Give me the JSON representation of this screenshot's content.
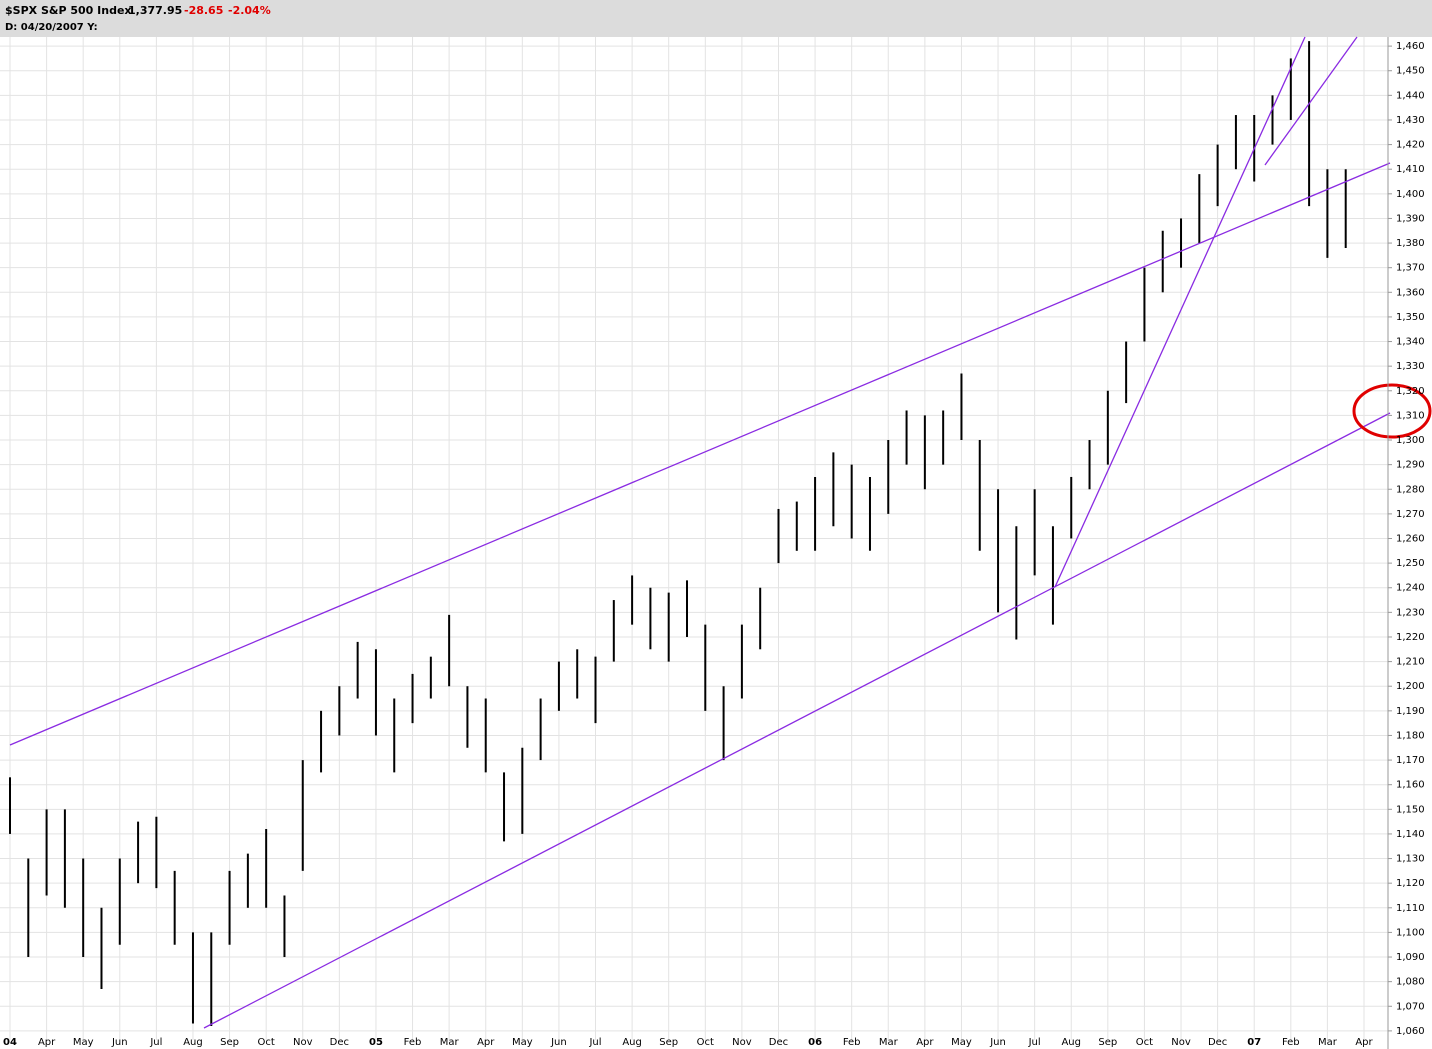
{
  "chart_data": {
    "type": "hl-bar",
    "title": "$SPX S&P 500 Index",
    "last": "1,377.95",
    "change": "-28.65",
    "change_pct": "-2.04%",
    "cursor_label": "D: 04/20/2007 Y:",
    "color": "#000000",
    "grid": true,
    "categories": [
      "04",
      null,
      "Apr",
      null,
      "May",
      null,
      "Jun",
      null,
      "Jul",
      null,
      "Aug",
      null,
      "Sep",
      null,
      "Oct",
      null,
      "Nov",
      null,
      "Dec",
      null,
      "05",
      null,
      "Feb",
      null,
      "Mar",
      null,
      "Apr",
      null,
      "May",
      null,
      "Jun",
      null,
      "Jul",
      null,
      "Aug",
      null,
      "Sep",
      null,
      "Oct",
      null,
      "Nov",
      null,
      "Dec",
      null,
      "06",
      null,
      "Feb",
      null,
      "Mar",
      null,
      "Apr",
      null,
      "May",
      null,
      "Jun",
      null,
      "Jul",
      null,
      "Aug",
      null,
      "Sep",
      null,
      "Oct",
      null,
      "Nov",
      null,
      "Dec",
      null,
      "07",
      null,
      "Feb",
      null,
      "Mar",
      null,
      "Apr"
    ],
    "high": [
      1163,
      1130,
      1150,
      1150,
      1130,
      1110,
      1130,
      1145,
      1147,
      1125,
      1100,
      1100,
      1125,
      1132,
      1142,
      1115,
      1170,
      1190,
      1200,
      1218,
      1215,
      1195,
      1205,
      1212,
      1229,
      1200,
      1195,
      1165,
      1175,
      1195,
      1210,
      1215,
      1212,
      1235,
      1245,
      1240,
      1238,
      1243,
      1225,
      1200,
      1225,
      1240,
      1272,
      1275,
      1285,
      1295,
      1290,
      1285,
      1300,
      1312,
      1310,
      1312,
      1327,
      1300,
      1280,
      1265,
      1280,
      1265,
      1285,
      1300,
      1320,
      1340,
      1370,
      1385,
      1390,
      1408,
      1420,
      1432,
      1432,
      1440,
      1455,
      1462,
      1410,
      1410,
      null
    ],
    "low": [
      1140,
      1090,
      1115,
      1110,
      1090,
      1077,
      1095,
      1120,
      1118,
      1095,
      1063,
      1062,
      1095,
      1110,
      1110,
      1090,
      1125,
      1165,
      1180,
      1195,
      1180,
      1165,
      1185,
      1195,
      1200,
      1175,
      1165,
      1137,
      1140,
      1170,
      1190,
      1195,
      1185,
      1210,
      1225,
      1215,
      1210,
      1220,
      1190,
      1170,
      1195,
      1215,
      1250,
      1255,
      1255,
      1265,
      1260,
      1255,
      1270,
      1290,
      1280,
      1290,
      1300,
      1255,
      1230,
      1219,
      1245,
      1225,
      1260,
      1280,
      1290,
      1315,
      1340,
      1360,
      1370,
      1380,
      1395,
      1410,
      1405,
      1420,
      1430,
      1395,
      1374,
      1378,
      null
    ],
    "ylim": [
      1056.3,
      1463.7
    ],
    "yticks": [
      {
        "value": 1060,
        "label": "1,060"
      },
      {
        "value": 1070,
        "label": "1,070"
      },
      {
        "value": 1080,
        "label": "1,080"
      },
      {
        "value": 1090,
        "label": "1,090"
      },
      {
        "value": 1100,
        "label": "1,100"
      },
      {
        "value": 1110,
        "label": "1,110"
      },
      {
        "value": 1120,
        "label": "1,120"
      },
      {
        "value": 1130,
        "label": "1,130"
      },
      {
        "value": 1140,
        "label": "1,140"
      },
      {
        "value": 1150,
        "label": "1,150"
      },
      {
        "value": 1160,
        "label": "1,160"
      },
      {
        "value": 1170,
        "label": "1,170"
      },
      {
        "value": 1180,
        "label": "1,180"
      },
      {
        "value": 1190,
        "label": "1,190"
      },
      {
        "value": 1200,
        "label": "1,200"
      },
      {
        "value": 1210,
        "label": "1,210"
      },
      {
        "value": 1220,
        "label": "1,220"
      },
      {
        "value": 1230,
        "label": "1,230"
      },
      {
        "value": 1240,
        "label": "1,240"
      },
      {
        "value": 1250,
        "label": "1,250"
      },
      {
        "value": 1260,
        "label": "1,260"
      },
      {
        "value": 1270,
        "label": "1,270"
      },
      {
        "value": 1280,
        "label": "1,280"
      },
      {
        "value": 1290,
        "label": "1,290"
      },
      {
        "value": 1300,
        "label": "1,300"
      },
      {
        "value": 1310,
        "label": "1,310"
      },
      {
        "value": 1320,
        "label": "1,320"
      },
      {
        "value": 1330,
        "label": "1,330"
      },
      {
        "value": 1340,
        "label": "1,340"
      },
      {
        "value": 1350,
        "label": "1,350"
      },
      {
        "value": 1360,
        "label": "1,360"
      },
      {
        "value": 1370,
        "label": "1,370"
      },
      {
        "value": 1380,
        "label": "1,380"
      },
      {
        "value": 1390,
        "label": "1,390"
      },
      {
        "value": 1400,
        "label": "1,400"
      },
      {
        "value": 1410,
        "label": "1,410"
      },
      {
        "value": 1420,
        "label": "1,420"
      },
      {
        "value": 1430,
        "label": "1,430"
      },
      {
        "value": 1440,
        "label": "1,440"
      },
      {
        "value": 1450,
        "label": "1,450"
      },
      {
        "value": 1460,
        "label": "1,460"
      }
    ]
  }
}
